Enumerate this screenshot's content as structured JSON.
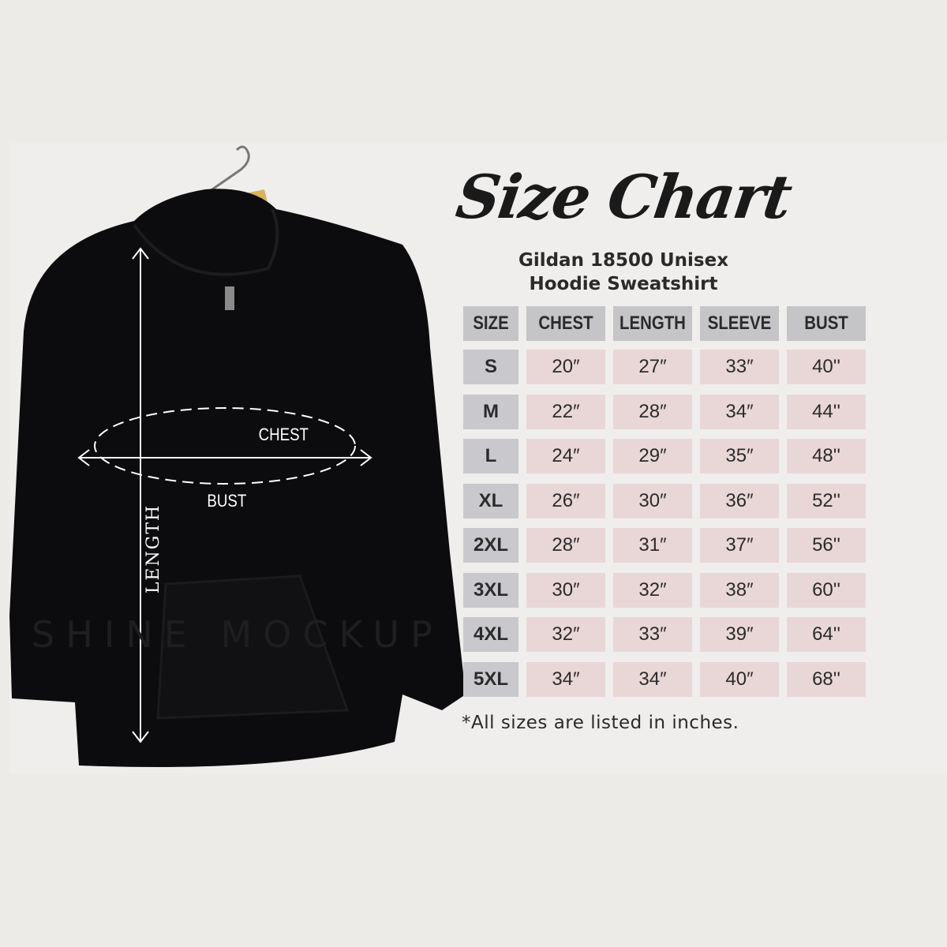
{
  "title": "Size Chart",
  "subtitle_line1": "Gildan 18500 Unisex",
  "subtitle_line2": "Hoodie Sweatshirt",
  "table": {
    "headers": [
      "SIZE",
      "CHEST",
      "LENGTH",
      "SLEEVE",
      "BUST"
    ],
    "rows": [
      [
        "S",
        "20″",
        "27″",
        "33″",
        "40''"
      ],
      [
        "M",
        "22″",
        "28″",
        "34″",
        "44''"
      ],
      [
        "L",
        "24″",
        "29″",
        "35″",
        "48''"
      ],
      [
        "XL",
        "26″",
        "30″",
        "36″",
        "52''"
      ],
      [
        "2XL",
        "28″",
        "31″",
        "37″",
        "56''"
      ],
      [
        "3XL",
        "30″",
        "32″",
        "38″",
        "60''"
      ],
      [
        "4XL",
        "32″",
        "33″",
        "39″",
        "64''"
      ],
      [
        "5XL",
        "34″",
        "34″",
        "40″",
        "68''"
      ]
    ]
  },
  "footnote": "*All sizes are listed in inches.",
  "diagram_labels": {
    "chest": "CHEST",
    "bust": "BUST",
    "length": "LENGTH"
  },
  "watermark": "SHINE MOCKUP",
  "colors": {
    "header_cell": "#c5c4c7",
    "size_cell": "#c9c8cc",
    "value_cell": "#e9d7d7",
    "hoodie": "#0c0c0e"
  }
}
